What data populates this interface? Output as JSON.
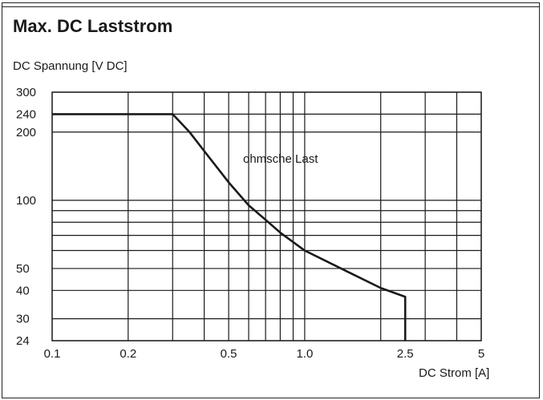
{
  "chart_data": {
    "type": "line",
    "title": "Max. DC Laststrom",
    "ylabel": "DC Spannung  [V DC]",
    "xlabel": "DC Strom [A]",
    "x_scale": "log",
    "y_scale": "log",
    "xlim": [
      0.1,
      5
    ],
    "ylim": [
      24,
      300
    ],
    "x_ticks": [
      {
        "value": 0.1,
        "label": "0.1"
      },
      {
        "value": 0.2,
        "label": "0.2"
      },
      {
        "value": 0.5,
        "label": "0.5"
      },
      {
        "value": 1.0,
        "label": "1.0"
      },
      {
        "value": 2.5,
        "label": "2.5"
      },
      {
        "value": 5,
        "label": "5"
      }
    ],
    "y_ticks": [
      {
        "value": 24,
        "label": "24"
      },
      {
        "value": 30,
        "label": "30"
      },
      {
        "value": 40,
        "label": "40"
      },
      {
        "value": 50,
        "label": "50"
      },
      {
        "value": 100,
        "label": "100"
      },
      {
        "value": 200,
        "label": "200"
      },
      {
        "value": 240,
        "label": "240"
      },
      {
        "value": 300,
        "label": "300"
      }
    ],
    "x_gridlines": [
      0.1,
      0.2,
      0.3,
      0.4,
      0.5,
      0.6,
      0.7,
      0.8,
      0.9,
      1.0,
      2.0,
      3.0,
      4.0,
      5.0
    ],
    "y_gridlines": [
      24,
      30,
      40,
      50,
      60,
      70,
      80,
      90,
      100,
      200,
      240,
      300
    ],
    "annotation": "ohmsche Last",
    "series": [
      {
        "points": [
          [
            0.1,
            240
          ],
          [
            0.3,
            240
          ],
          [
            0.35,
            200
          ],
          [
            0.4,
            165
          ],
          [
            0.5,
            120
          ],
          [
            0.6,
            95
          ],
          [
            0.7,
            82
          ],
          [
            0.8,
            72
          ],
          [
            1.0,
            60
          ],
          [
            1.5,
            48
          ],
          [
            2.0,
            41
          ],
          [
            2.5,
            37.5
          ],
          [
            2.5,
            24
          ]
        ]
      }
    ],
    "grid": true,
    "line_color": "#1a1a1a"
  }
}
